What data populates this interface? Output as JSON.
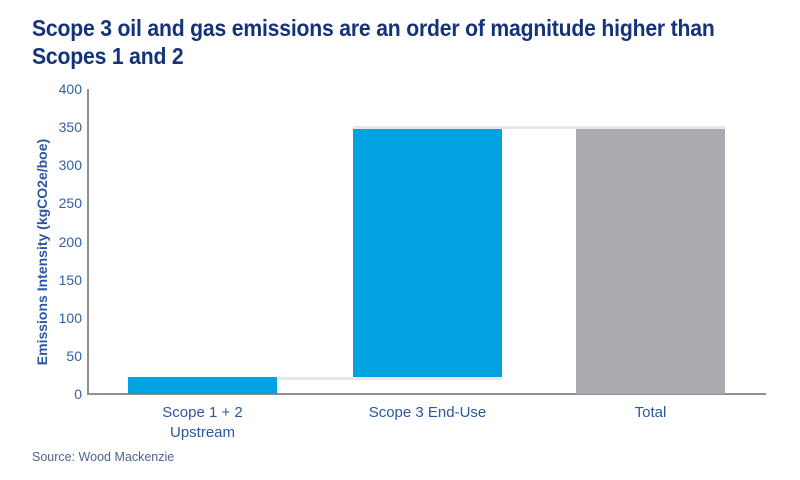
{
  "page": {
    "title_lines": [
      "Scope 3 oil and gas emissions are an order of magnitude higher than",
      "Scopes 1 and 2"
    ],
    "source": "Source: Wood Mackenzie"
  },
  "colors": {
    "title": "#15337a",
    "axis_label": "#2b57a0",
    "tick_label": "#2f5fa8",
    "bar_blue": "#00a3e0",
    "bar_gray": "#a9abae",
    "connector": "#e7e8ea",
    "axis_line": "#8f9092",
    "source_text": "#4d648f",
    "background": "#ffffff"
  },
  "chart_data": {
    "type": "bar",
    "subtype": "waterfall",
    "title": "Scope 3 oil and gas emissions are an order of magnitude higher than Scopes 1 and 2",
    "xlabel": "",
    "ylabel": "Emissions Intensity (kgCO2e/boe)",
    "ylim": [
      0,
      400
    ],
    "yticks": [
      0,
      50,
      100,
      150,
      200,
      250,
      300,
      350,
      400
    ],
    "grid": false,
    "legend": false,
    "categories": [
      "Scope 1 + 2 Upstream",
      "Scope 3 End-Use",
      "Total"
    ],
    "bars": [
      {
        "label_lines": [
          "Scope 1 + 2",
          "Upstream"
        ],
        "base": 0,
        "top": 22,
        "value": 22,
        "color_key": "bar_blue"
      },
      {
        "label_lines": [
          "Scope 3 End-Use"
        ],
        "base": 22,
        "top": 347,
        "value": 325,
        "color_key": "bar_blue"
      },
      {
        "label_lines": [
          "Total"
        ],
        "base": 0,
        "top": 347,
        "value": 347,
        "color_key": "bar_gray"
      }
    ],
    "connectors": [
      {
        "level": 22,
        "from_bar": 0,
        "from_edge": "right",
        "to_bar": 1,
        "to_edge": "right",
        "side": "below"
      },
      {
        "level": 347,
        "from_bar": 1,
        "from_edge": "left",
        "to_bar": 2,
        "to_edge": "right",
        "side": "above"
      }
    ],
    "source": "Source: Wood Mackenzie"
  }
}
